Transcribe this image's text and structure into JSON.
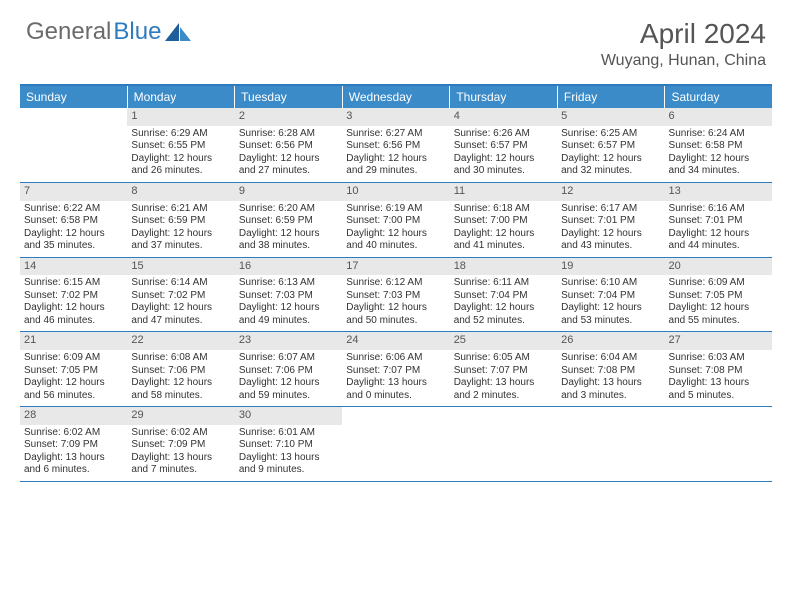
{
  "logo": {
    "text1": "General",
    "text2": "Blue"
  },
  "title": "April 2024",
  "location": "Wuyang, Hunan, China",
  "colors": {
    "accent": "#2f7bbf",
    "header_bg": "#3b8bc9",
    "daynum_bg": "#e8e8e8",
    "text": "#333333",
    "logo_gray": "#6b6b6b"
  },
  "day_names": [
    "Sunday",
    "Monday",
    "Tuesday",
    "Wednesday",
    "Thursday",
    "Friday",
    "Saturday"
  ],
  "weeks": [
    [
      {
        "blank": true
      },
      {
        "n": "1",
        "sr": "Sunrise: 6:29 AM",
        "ss": "Sunset: 6:55 PM",
        "dl": "Daylight: 12 hours and 26 minutes."
      },
      {
        "n": "2",
        "sr": "Sunrise: 6:28 AM",
        "ss": "Sunset: 6:56 PM",
        "dl": "Daylight: 12 hours and 27 minutes."
      },
      {
        "n": "3",
        "sr": "Sunrise: 6:27 AM",
        "ss": "Sunset: 6:56 PM",
        "dl": "Daylight: 12 hours and 29 minutes."
      },
      {
        "n": "4",
        "sr": "Sunrise: 6:26 AM",
        "ss": "Sunset: 6:57 PM",
        "dl": "Daylight: 12 hours and 30 minutes."
      },
      {
        "n": "5",
        "sr": "Sunrise: 6:25 AM",
        "ss": "Sunset: 6:57 PM",
        "dl": "Daylight: 12 hours and 32 minutes."
      },
      {
        "n": "6",
        "sr": "Sunrise: 6:24 AM",
        "ss": "Sunset: 6:58 PM",
        "dl": "Daylight: 12 hours and 34 minutes."
      }
    ],
    [
      {
        "n": "7",
        "sr": "Sunrise: 6:22 AM",
        "ss": "Sunset: 6:58 PM",
        "dl": "Daylight: 12 hours and 35 minutes."
      },
      {
        "n": "8",
        "sr": "Sunrise: 6:21 AM",
        "ss": "Sunset: 6:59 PM",
        "dl": "Daylight: 12 hours and 37 minutes."
      },
      {
        "n": "9",
        "sr": "Sunrise: 6:20 AM",
        "ss": "Sunset: 6:59 PM",
        "dl": "Daylight: 12 hours and 38 minutes."
      },
      {
        "n": "10",
        "sr": "Sunrise: 6:19 AM",
        "ss": "Sunset: 7:00 PM",
        "dl": "Daylight: 12 hours and 40 minutes."
      },
      {
        "n": "11",
        "sr": "Sunrise: 6:18 AM",
        "ss": "Sunset: 7:00 PM",
        "dl": "Daylight: 12 hours and 41 minutes."
      },
      {
        "n": "12",
        "sr": "Sunrise: 6:17 AM",
        "ss": "Sunset: 7:01 PM",
        "dl": "Daylight: 12 hours and 43 minutes."
      },
      {
        "n": "13",
        "sr": "Sunrise: 6:16 AM",
        "ss": "Sunset: 7:01 PM",
        "dl": "Daylight: 12 hours and 44 minutes."
      }
    ],
    [
      {
        "n": "14",
        "sr": "Sunrise: 6:15 AM",
        "ss": "Sunset: 7:02 PM",
        "dl": "Daylight: 12 hours and 46 minutes."
      },
      {
        "n": "15",
        "sr": "Sunrise: 6:14 AM",
        "ss": "Sunset: 7:02 PM",
        "dl": "Daylight: 12 hours and 47 minutes."
      },
      {
        "n": "16",
        "sr": "Sunrise: 6:13 AM",
        "ss": "Sunset: 7:03 PM",
        "dl": "Daylight: 12 hours and 49 minutes."
      },
      {
        "n": "17",
        "sr": "Sunrise: 6:12 AM",
        "ss": "Sunset: 7:03 PM",
        "dl": "Daylight: 12 hours and 50 minutes."
      },
      {
        "n": "18",
        "sr": "Sunrise: 6:11 AM",
        "ss": "Sunset: 7:04 PM",
        "dl": "Daylight: 12 hours and 52 minutes."
      },
      {
        "n": "19",
        "sr": "Sunrise: 6:10 AM",
        "ss": "Sunset: 7:04 PM",
        "dl": "Daylight: 12 hours and 53 minutes."
      },
      {
        "n": "20",
        "sr": "Sunrise: 6:09 AM",
        "ss": "Sunset: 7:05 PM",
        "dl": "Daylight: 12 hours and 55 minutes."
      }
    ],
    [
      {
        "n": "21",
        "sr": "Sunrise: 6:09 AM",
        "ss": "Sunset: 7:05 PM",
        "dl": "Daylight: 12 hours and 56 minutes."
      },
      {
        "n": "22",
        "sr": "Sunrise: 6:08 AM",
        "ss": "Sunset: 7:06 PM",
        "dl": "Daylight: 12 hours and 58 minutes."
      },
      {
        "n": "23",
        "sr": "Sunrise: 6:07 AM",
        "ss": "Sunset: 7:06 PM",
        "dl": "Daylight: 12 hours and 59 minutes."
      },
      {
        "n": "24",
        "sr": "Sunrise: 6:06 AM",
        "ss": "Sunset: 7:07 PM",
        "dl": "Daylight: 13 hours and 0 minutes."
      },
      {
        "n": "25",
        "sr": "Sunrise: 6:05 AM",
        "ss": "Sunset: 7:07 PM",
        "dl": "Daylight: 13 hours and 2 minutes."
      },
      {
        "n": "26",
        "sr": "Sunrise: 6:04 AM",
        "ss": "Sunset: 7:08 PM",
        "dl": "Daylight: 13 hours and 3 minutes."
      },
      {
        "n": "27",
        "sr": "Sunrise: 6:03 AM",
        "ss": "Sunset: 7:08 PM",
        "dl": "Daylight: 13 hours and 5 minutes."
      }
    ],
    [
      {
        "n": "28",
        "sr": "Sunrise: 6:02 AM",
        "ss": "Sunset: 7:09 PM",
        "dl": "Daylight: 13 hours and 6 minutes."
      },
      {
        "n": "29",
        "sr": "Sunrise: 6:02 AM",
        "ss": "Sunset: 7:09 PM",
        "dl": "Daylight: 13 hours and 7 minutes."
      },
      {
        "n": "30",
        "sr": "Sunrise: 6:01 AM",
        "ss": "Sunset: 7:10 PM",
        "dl": "Daylight: 13 hours and 9 minutes."
      },
      {
        "blank": true
      },
      {
        "blank": true
      },
      {
        "blank": true
      },
      {
        "blank": true
      }
    ]
  ]
}
